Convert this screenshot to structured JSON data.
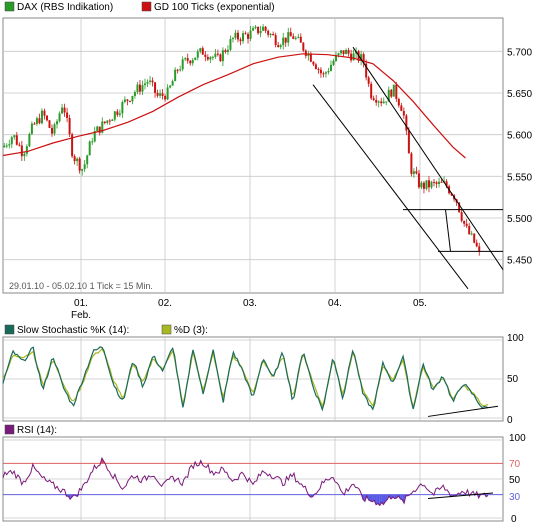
{
  "colors": {
    "candle_up": "#2a9a2a",
    "candle_down": "#cc1111",
    "ma": "#cc1111",
    "stoch_k": "#1a6a5a",
    "stoch_d": "#a8b820",
    "rsi": "#7a1a7a",
    "rsi_over": "#e02020",
    "rsi_under": "#3a3ae0",
    "channel": "#000000",
    "grid": "#c8c8c8",
    "line70": "#e06060",
    "line30": "#6060e0"
  },
  "main": {
    "legend": [
      {
        "label": "DAX (RBS Indikation)",
        "swatch": "#2a9a2a"
      },
      {
        "label": "GD 100 Ticks (exponential)",
        "swatch": "#cc1111"
      }
    ],
    "footer": "29.01.10 - 05.02.10   1 Tick = 15 Min.",
    "ylim": [
      5410,
      5740
    ]
  },
  "x_axis": {
    "ticks": [
      {
        "label": "01.",
        "sublabel": "Feb.",
        "t": 0.156
      },
      {
        "label": "02.",
        "sublabel": "",
        "t": 0.324
      },
      {
        "label": "03.",
        "sublabel": "",
        "t": 0.494
      },
      {
        "label": "04.",
        "sublabel": "",
        "t": 0.664
      },
      {
        "label": "05.",
        "sublabel": "",
        "t": 0.834
      }
    ]
  },
  "stoch": {
    "legend": [
      {
        "label": "Slow Stochastic %K (14):",
        "swatch": "#1a6a5a"
      },
      {
        "label": "%D (3):",
        "swatch": "#a8b820"
      }
    ],
    "ticks": [
      "100",
      "50",
      "0"
    ]
  },
  "rsi": {
    "legend": [
      {
        "label": "RSI (14):",
        "swatch": "#7a1a7a"
      }
    ],
    "ticks": [
      "100",
      "70",
      "50",
      "30",
      "0"
    ]
  },
  "chart_data": [
    {
      "type": "candlestick",
      "yticks": [
        "5.700",
        "5.650",
        "5.600",
        "5.550",
        "5.500",
        "5.450"
      ],
      "ytick_values": [
        5700,
        5650,
        5600,
        5550,
        5500,
        5450
      ],
      "price_path": [
        [
          0.0,
          5585
        ],
        [
          0.02,
          5600
        ],
        [
          0.04,
          5578
        ],
        [
          0.06,
          5610
        ],
        [
          0.08,
          5625
        ],
        [
          0.1,
          5600
        ],
        [
          0.12,
          5640
        ],
        [
          0.14,
          5575
        ],
        [
          0.16,
          5558
        ],
        [
          0.18,
          5600
        ],
        [
          0.2,
          5612
        ],
        [
          0.23,
          5630
        ],
        [
          0.26,
          5650
        ],
        [
          0.29,
          5665
        ],
        [
          0.31,
          5645
        ],
        [
          0.33,
          5650
        ],
        [
          0.35,
          5680
        ],
        [
          0.37,
          5690
        ],
        [
          0.4,
          5700
        ],
        [
          0.43,
          5690
        ],
        [
          0.46,
          5715
        ],
        [
          0.49,
          5720
        ],
        [
          0.52,
          5728
        ],
        [
          0.55,
          5712
        ],
        [
          0.58,
          5718
        ],
        [
          0.6,
          5705
        ],
        [
          0.62,
          5690
        ],
        [
          0.64,
          5670
        ],
        [
          0.66,
          5688
        ],
        [
          0.68,
          5700
        ],
        [
          0.7,
          5695
        ],
        [
          0.72,
          5690
        ],
        [
          0.735,
          5650
        ],
        [
          0.76,
          5640
        ],
        [
          0.78,
          5655
        ],
        [
          0.8,
          5630
        ],
        [
          0.815,
          5560
        ],
        [
          0.835,
          5538
        ],
        [
          0.86,
          5540
        ],
        [
          0.885,
          5540
        ],
        [
          0.905,
          5525
        ],
        [
          0.925,
          5488
        ],
        [
          0.945,
          5468
        ],
        [
          0.955,
          5452
        ]
      ],
      "ma_path": [
        [
          0.0,
          5575
        ],
        [
          0.05,
          5580
        ],
        [
          0.1,
          5590
        ],
        [
          0.15,
          5598
        ],
        [
          0.2,
          5605
        ],
        [
          0.25,
          5615
        ],
        [
          0.3,
          5628
        ],
        [
          0.35,
          5645
        ],
        [
          0.4,
          5660
        ],
        [
          0.45,
          5672
        ],
        [
          0.5,
          5685
        ],
        [
          0.55,
          5693
        ],
        [
          0.6,
          5697
        ],
        [
          0.65,
          5696
        ],
        [
          0.7,
          5692
        ],
        [
          0.74,
          5685
        ],
        [
          0.78,
          5665
        ],
        [
          0.82,
          5640
        ],
        [
          0.86,
          5612
        ],
        [
          0.9,
          5585
        ],
        [
          0.925,
          5572
        ]
      ],
      "channel_lines": [
        [
          [
            0.62,
            5660
          ],
          [
            0.93,
            5415
          ]
        ],
        [
          [
            0.7,
            5705
          ],
          [
            1.0,
            5438
          ]
        ],
        [
          [
            0.8,
            5510
          ],
          [
            1.0,
            5510
          ]
        ],
        [
          [
            0.87,
            5460
          ],
          [
            1.0,
            5460
          ]
        ],
        [
          [
            0.885,
            5510
          ],
          [
            0.895,
            5460
          ]
        ]
      ]
    },
    {
      "type": "line",
      "ylim": [
        0,
        100
      ],
      "stoch_k": [
        [
          0.0,
          45
        ],
        [
          0.02,
          85
        ],
        [
          0.04,
          72
        ],
        [
          0.06,
          90
        ],
        [
          0.08,
          35
        ],
        [
          0.1,
          80
        ],
        [
          0.12,
          40
        ],
        [
          0.14,
          15
        ],
        [
          0.16,
          50
        ],
        [
          0.18,
          85
        ],
        [
          0.2,
          92
        ],
        [
          0.22,
          45
        ],
        [
          0.24,
          20
        ],
        [
          0.26,
          75
        ],
        [
          0.28,
          40
        ],
        [
          0.3,
          80
        ],
        [
          0.32,
          60
        ],
        [
          0.34,
          92
        ],
        [
          0.36,
          10
        ],
        [
          0.38,
          90
        ],
        [
          0.4,
          30
        ],
        [
          0.42,
          88
        ],
        [
          0.44,
          20
        ],
        [
          0.46,
          85
        ],
        [
          0.48,
          60
        ],
        [
          0.5,
          25
        ],
        [
          0.52,
          78
        ],
        [
          0.54,
          50
        ],
        [
          0.56,
          85
        ],
        [
          0.58,
          20
        ],
        [
          0.6,
          88
        ],
        [
          0.62,
          40
        ],
        [
          0.64,
          10
        ],
        [
          0.66,
          80
        ],
        [
          0.68,
          25
        ],
        [
          0.7,
          90
        ],
        [
          0.72,
          30
        ],
        [
          0.74,
          10
        ],
        [
          0.76,
          70
        ],
        [
          0.78,
          45
        ],
        [
          0.8,
          80
        ],
        [
          0.82,
          10
        ],
        [
          0.84,
          70
        ],
        [
          0.86,
          35
        ],
        [
          0.88,
          55
        ],
        [
          0.9,
          20
        ],
        [
          0.92,
          45
        ],
        [
          0.94,
          30
        ],
        [
          0.96,
          12
        ],
        [
          0.97,
          15
        ]
      ],
      "stoch_d": [
        [
          0.0,
          50
        ],
        [
          0.02,
          80
        ],
        [
          0.04,
          76
        ],
        [
          0.06,
          85
        ],
        [
          0.08,
          42
        ],
        [
          0.1,
          75
        ],
        [
          0.12,
          45
        ],
        [
          0.14,
          20
        ],
        [
          0.16,
          45
        ],
        [
          0.18,
          80
        ],
        [
          0.2,
          88
        ],
        [
          0.22,
          50
        ],
        [
          0.24,
          25
        ],
        [
          0.26,
          70
        ],
        [
          0.28,
          45
        ],
        [
          0.3,
          76
        ],
        [
          0.32,
          62
        ],
        [
          0.34,
          88
        ],
        [
          0.36,
          15
        ],
        [
          0.38,
          85
        ],
        [
          0.4,
          35
        ],
        [
          0.42,
          84
        ],
        [
          0.44,
          25
        ],
        [
          0.46,
          80
        ],
        [
          0.48,
          62
        ],
        [
          0.5,
          30
        ],
        [
          0.52,
          74
        ],
        [
          0.54,
          52
        ],
        [
          0.56,
          80
        ],
        [
          0.58,
          25
        ],
        [
          0.6,
          84
        ],
        [
          0.62,
          45
        ],
        [
          0.64,
          14
        ],
        [
          0.66,
          76
        ],
        [
          0.68,
          30
        ],
        [
          0.7,
          86
        ],
        [
          0.72,
          35
        ],
        [
          0.74,
          14
        ],
        [
          0.76,
          66
        ],
        [
          0.78,
          48
        ],
        [
          0.8,
          76
        ],
        [
          0.82,
          14
        ],
        [
          0.84,
          66
        ],
        [
          0.86,
          38
        ],
        [
          0.88,
          52
        ],
        [
          0.9,
          24
        ],
        [
          0.92,
          42
        ],
        [
          0.94,
          32
        ],
        [
          0.96,
          15
        ],
        [
          0.97,
          16
        ]
      ],
      "trend_line": [
        [
          0.85,
          2
        ],
        [
          0.99,
          15
        ]
      ]
    },
    {
      "type": "line",
      "ylim": [
        0,
        100
      ],
      "levels": [
        70,
        30
      ],
      "rsi": [
        [
          0.0,
          55
        ],
        [
          0.02,
          60
        ],
        [
          0.04,
          45
        ],
        [
          0.06,
          65
        ],
        [
          0.08,
          50
        ],
        [
          0.1,
          42
        ],
        [
          0.12,
          35
        ],
        [
          0.14,
          25
        ],
        [
          0.16,
          40
        ],
        [
          0.18,
          62
        ],
        [
          0.2,
          75
        ],
        [
          0.22,
          55
        ],
        [
          0.24,
          38
        ],
        [
          0.26,
          55
        ],
        [
          0.28,
          48
        ],
        [
          0.3,
          58
        ],
        [
          0.32,
          40
        ],
        [
          0.34,
          52
        ],
        [
          0.36,
          45
        ],
        [
          0.38,
          68
        ],
        [
          0.4,
          72
        ],
        [
          0.42,
          58
        ],
        [
          0.44,
          62
        ],
        [
          0.46,
          48
        ],
        [
          0.48,
          58
        ],
        [
          0.5,
          42
        ],
        [
          0.52,
          60
        ],
        [
          0.54,
          55
        ],
        [
          0.56,
          45
        ],
        [
          0.58,
          55
        ],
        [
          0.6,
          40
        ],
        [
          0.62,
          28
        ],
        [
          0.64,
          45
        ],
        [
          0.66,
          55
        ],
        [
          0.68,
          30
        ],
        [
          0.7,
          45
        ],
        [
          0.72,
          25
        ],
        [
          0.74,
          22
        ],
        [
          0.76,
          18
        ],
        [
          0.78,
          30
        ],
        [
          0.8,
          20
        ],
        [
          0.82,
          35
        ],
        [
          0.84,
          45
        ],
        [
          0.86,
          30
        ],
        [
          0.88,
          40
        ],
        [
          0.9,
          28
        ],
        [
          0.92,
          35
        ],
        [
          0.94,
          30
        ],
        [
          0.96,
          28
        ],
        [
          0.97,
          30
        ]
      ],
      "trend_line": [
        [
          0.85,
          25
        ],
        [
          0.98,
          32
        ]
      ]
    }
  ]
}
